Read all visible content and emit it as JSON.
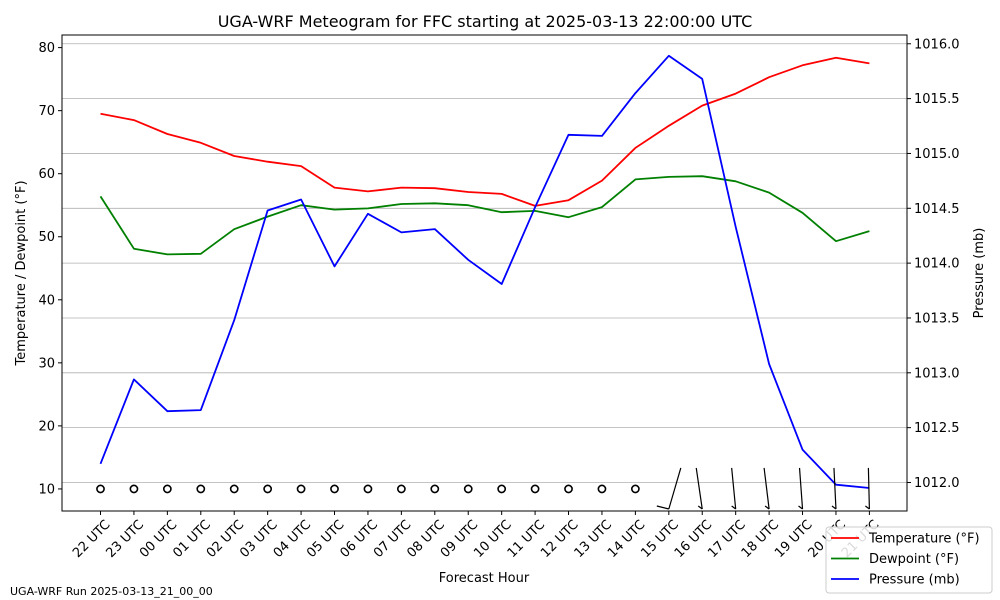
{
  "chart_data": {
    "type": "line",
    "title": "UGA-WRF Meteogram for FFC starting at 2025-03-13 22:00:00 UTC",
    "xlabel": "Forecast Hour",
    "ylabel_left": "Temperature / Dewpoint (°F)",
    "ylabel_right": "Pressure (mb)",
    "categories": [
      "22 UTC",
      "23 UTC",
      "00 UTC",
      "01 UTC",
      "02 UTC",
      "03 UTC",
      "04 UTC",
      "05 UTC",
      "06 UTC",
      "07 UTC",
      "08 UTC",
      "09 UTC",
      "10 UTC",
      "11 UTC",
      "12 UTC",
      "13 UTC",
      "14 UTC",
      "15 UTC",
      "16 UTC",
      "17 UTC",
      "18 UTC",
      "19 UTC",
      "20 UTC",
      "21 UTC"
    ],
    "left_axis": {
      "ylim": [
        6.5,
        82.0
      ],
      "ticks": [
        10,
        20,
        30,
        40,
        50,
        60,
        70,
        80
      ]
    },
    "right_axis": {
      "ylim": [
        1011.74,
        1016.08
      ],
      "ticks": [
        "1012.0",
        "1012.5",
        "1013.0",
        "1013.5",
        "1014.0",
        "1014.5",
        "1015.0",
        "1015.5",
        "1016.0"
      ]
    },
    "grid": "horizontal, right axis",
    "legend_position": "bottom-right",
    "series": [
      {
        "name": "Temperature (°F)",
        "color": "#ff0000",
        "axis": "left",
        "values": [
          69.5,
          68.5,
          66.3,
          64.9,
          62.8,
          61.9,
          61.2,
          57.8,
          57.2,
          57.8,
          57.7,
          57.1,
          56.8,
          54.9,
          55.8,
          58.9,
          64.1,
          67.6,
          70.8,
          72.7,
          75.3,
          77.2,
          78.4,
          77.5
        ]
      },
      {
        "name": "Dewpoint (°F)",
        "color": "#008000",
        "axis": "left",
        "values": [
          56.4,
          48.1,
          47.2,
          47.3,
          51.2,
          53.2,
          55.0,
          54.3,
          54.5,
          55.2,
          55.3,
          55.0,
          53.9,
          54.1,
          53.1,
          54.7,
          59.1,
          59.5,
          59.6,
          58.8,
          57.0,
          53.8,
          49.3,
          50.9
        ]
      },
      {
        "name": "Pressure (mb)",
        "color": "#0000ff",
        "axis": "right",
        "values": [
          1012.17,
          1012.94,
          1012.65,
          1012.66,
          1013.48,
          1014.48,
          1014.58,
          1013.97,
          1014.45,
          1014.28,
          1014.31,
          1014.03,
          1013.81,
          1014.51,
          1015.17,
          1015.16,
          1015.55,
          1015.89,
          1015.68,
          1014.33,
          1013.08,
          1012.3,
          1011.98,
          1011.95
        ]
      }
    ],
    "wind_barbs": {
      "level": 10,
      "calm_count": 17,
      "barb_start_index": 17,
      "count": 7
    }
  },
  "footer": {
    "run_label": "UGA-WRF Run 2025-03-13_21_00_00"
  }
}
